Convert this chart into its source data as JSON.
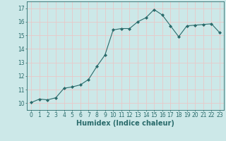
{
  "x": [
    0,
    1,
    2,
    3,
    4,
    5,
    6,
    7,
    8,
    9,
    10,
    11,
    12,
    13,
    14,
    15,
    16,
    17,
    18,
    19,
    20,
    21,
    22,
    23
  ],
  "y": [
    10.05,
    10.3,
    10.25,
    10.4,
    11.1,
    11.2,
    11.35,
    11.75,
    12.7,
    13.55,
    15.4,
    15.5,
    15.5,
    16.0,
    16.3,
    16.9,
    16.5,
    15.7,
    14.9,
    15.7,
    15.75,
    15.8,
    15.85,
    15.2
  ],
  "line_color": "#2a6b6b",
  "marker": "D",
  "markersize": 2.0,
  "linewidth": 0.8,
  "linestyle": "-",
  "xlabel": "Humidex (Indice chaleur)",
  "xlabel_fontsize": 7,
  "ylabel_ticks": [
    10,
    11,
    12,
    13,
    14,
    15,
    16,
    17
  ],
  "xlim": [
    -0.5,
    23.5
  ],
  "ylim": [
    9.5,
    17.5
  ],
  "xtick_labels": [
    "0",
    "1",
    "2",
    "3",
    "4",
    "5",
    "6",
    "7",
    "8",
    "9",
    "10",
    "11",
    "12",
    "13",
    "14",
    "15",
    "16",
    "17",
    "18",
    "19",
    "20",
    "21",
    "22",
    "23"
  ],
  "background_color": "#cce8e8",
  "grid_color": "#e8c8c8",
  "tick_fontsize": 5.5
}
